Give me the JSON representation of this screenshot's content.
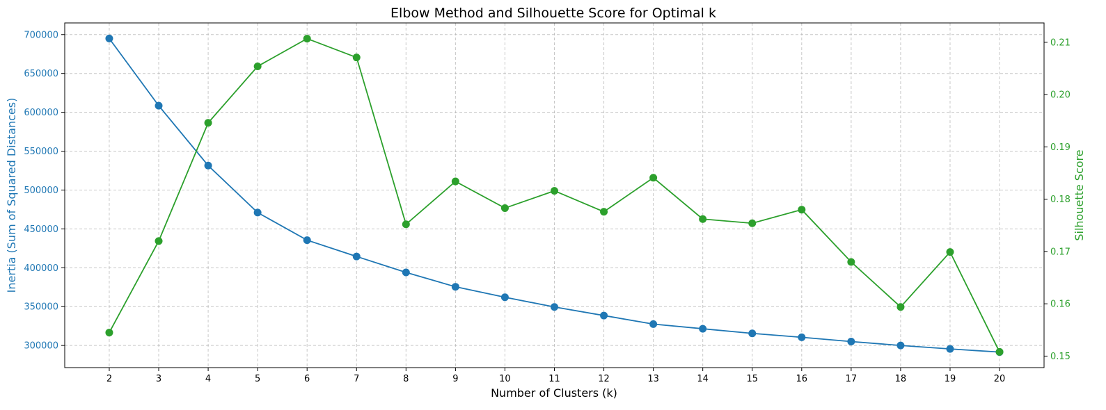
{
  "chart_data": {
    "type": "line",
    "title": "Elbow Method and Silhouette Score for Optimal k",
    "xlabel": "Number of Clusters (k)",
    "x": [
      2,
      3,
      4,
      5,
      6,
      7,
      8,
      9,
      10,
      11,
      12,
      13,
      14,
      15,
      16,
      17,
      18,
      19,
      20
    ],
    "xlim": [
      1.1,
      20.9
    ],
    "grid": true,
    "series": [
      {
        "name": "Inertia (Sum of Squared Distances)",
        "axis": "left",
        "color": "#1f77b4",
        "marker": "circle",
        "values": [
          695000,
          608500,
          531500,
          471000,
          435500,
          414500,
          394000,
          375500,
          362000,
          349500,
          338500,
          327500,
          321500,
          315500,
          310500,
          305000,
          300000,
          295500,
          291500
        ]
      },
      {
        "name": "Silhouette Score",
        "axis": "right",
        "color": "#2ca02c",
        "marker": "circle",
        "values": [
          0.1545,
          0.172,
          0.1946,
          0.2054,
          0.2107,
          0.2071,
          0.1752,
          0.1834,
          0.1783,
          0.1816,
          0.1776,
          0.1841,
          0.1762,
          0.1754,
          0.178,
          0.168,
          0.1594,
          0.1699,
          0.1508
        ]
      }
    ],
    "y_left": {
      "label": "Inertia (Sum of Squared Distances)",
      "ticks": [
        300000,
        350000,
        400000,
        450000,
        500000,
        550000,
        600000,
        650000,
        700000
      ],
      "range": [
        271500,
        715000
      ],
      "color": "#1f77b4"
    },
    "y_right": {
      "label": "Silhouette Score",
      "ticks": [
        0.15,
        0.16,
        0.17,
        0.18,
        0.19,
        0.2,
        0.21
      ],
      "tick_labels": [
        "0.15",
        "0.16",
        "0.17",
        "0.18",
        "0.19",
        "0.20",
        "0.21"
      ],
      "range": [
        0.1478,
        0.2137
      ],
      "color": "#2ca02c"
    }
  }
}
